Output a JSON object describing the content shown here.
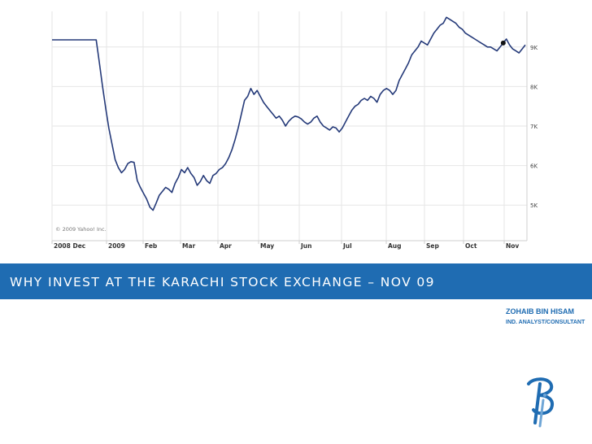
{
  "chart_data": {
    "type": "line",
    "title": "",
    "xlabel": "",
    "ylabel": "",
    "x_tick_labels": [
      "2008 Dec",
      "2009",
      "Feb",
      "Mar",
      "Apr",
      "May",
      "Jun",
      "Jul",
      "Aug",
      "Sep",
      "Oct",
      "Nov"
    ],
    "y_tick_labels": [
      "9K",
      "8K",
      "7K",
      "6K",
      "5K"
    ],
    "y_ticks": [
      9000,
      8000,
      7000,
      6000,
      5000
    ],
    "ylim": [
      4100,
      9900
    ],
    "grid": true,
    "copyright": "© 2009 Yahoo! Inc.",
    "series": [
      {
        "values": [
          9180,
          9180,
          9180,
          9180,
          9180,
          9180,
          9180,
          9180,
          9180,
          9180,
          9180,
          9180,
          9180,
          9180,
          9180,
          8600,
          8000,
          7450,
          6950,
          6550,
          6150,
          5950,
          5820,
          5900,
          6050,
          6100,
          6080,
          5620,
          5450,
          5300,
          5150,
          4950,
          4870,
          5050,
          5250,
          5350,
          5450,
          5400,
          5320,
          5550,
          5700,
          5900,
          5820,
          5950,
          5800,
          5700,
          5500,
          5600,
          5750,
          5620,
          5550,
          5750,
          5800,
          5900,
          5950,
          6050,
          6200,
          6400,
          6650,
          6950,
          7300,
          7650,
          7750,
          7950,
          7800,
          7900,
          7750,
          7600,
          7500,
          7400,
          7300,
          7200,
          7250,
          7150,
          7000,
          7120,
          7200,
          7250,
          7230,
          7180,
          7100,
          7050,
          7100,
          7200,
          7250,
          7100,
          7000,
          6950,
          6900,
          6980,
          6950,
          6850,
          6950,
          7100,
          7250,
          7400,
          7500,
          7550,
          7650,
          7700,
          7650,
          7750,
          7700,
          7600,
          7800,
          7900,
          7950,
          7900,
          7800,
          7900,
          8150,
          8300,
          8450,
          8600,
          8800,
          8900,
          9000,
          9150,
          9100,
          9050,
          9200,
          9350,
          9450,
          9550,
          9600,
          9750,
          9700,
          9650,
          9600,
          9500,
          9450,
          9350,
          9300,
          9250,
          9200,
          9150,
          9100,
          9050,
          9000,
          9000,
          8950,
          8900,
          9000,
          9100,
          9200,
          9050,
          8950,
          8900,
          8850,
          8950,
          9050
        ]
      }
    ]
  },
  "slide": {
    "title": "WHY INVEST AT THE KARACHI STOCK EXCHANGE – NOV 09",
    "presenter_name": "ZOHAIB BIN HISAM",
    "presenter_role": "IND. ANALYST/CONSULTANT",
    "accent_color": "#1f6cb2",
    "line_color": "#253a79",
    "logo": "bi-monogram-logo"
  }
}
